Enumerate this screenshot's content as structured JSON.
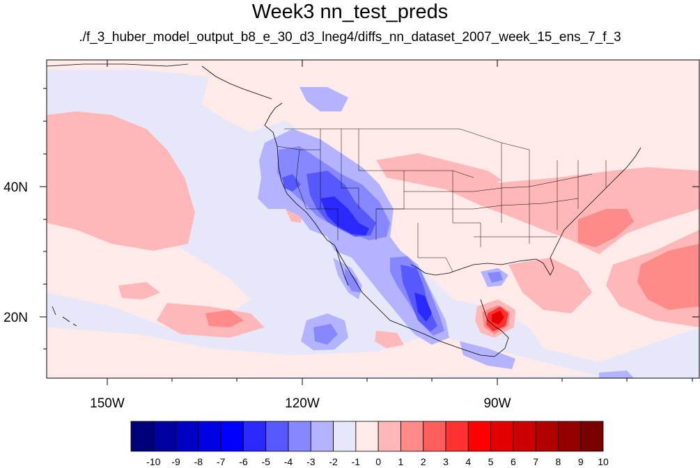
{
  "title": "Week3 nn_test_preds",
  "subtitle": "./f_3_huber_model_output_b8_e_30_d3_lneg4/diffs_nn_dataset_2007_week_15_ens_7_f_3",
  "map": {
    "projection": "cylindrical-equidistant",
    "lon_range": [
      -160,
      -62
    ],
    "lat_range": [
      11,
      60
    ],
    "background_value_color": "#e6e8fa",
    "x_ticks": [
      {
        "label": "150W",
        "lon": -150
      },
      {
        "label": "120W",
        "lon": -120
      },
      {
        "label": "90W",
        "lon": -90
      }
    ],
    "y_ticks": [
      {
        "label": "40N",
        "lat": 40
      },
      {
        "label": "20N",
        "lat": 20
      }
    ]
  },
  "colorbar": {
    "levels": [
      "-10",
      "-9",
      "-8",
      "-7",
      "-6",
      "-5",
      "-4",
      "-3",
      "-2",
      "-1",
      "0",
      "1",
      "2",
      "3",
      "4",
      "5",
      "6",
      "7",
      "8",
      "9",
      "10"
    ],
    "colors": [
      "#00007a",
      "#0000a0",
      "#0000c4",
      "#0000e4",
      "#0000ff",
      "#2929ff",
      "#5858ff",
      "#8787ff",
      "#b3b3ff",
      "#e6e8fa",
      "#ffeaea",
      "#ffb7b7",
      "#ff8a8a",
      "#ff5e5e",
      "#ff3131",
      "#ff0000",
      "#e50000",
      "#cc0000",
      "#b00000",
      "#940000",
      "#780000"
    ]
  }
}
